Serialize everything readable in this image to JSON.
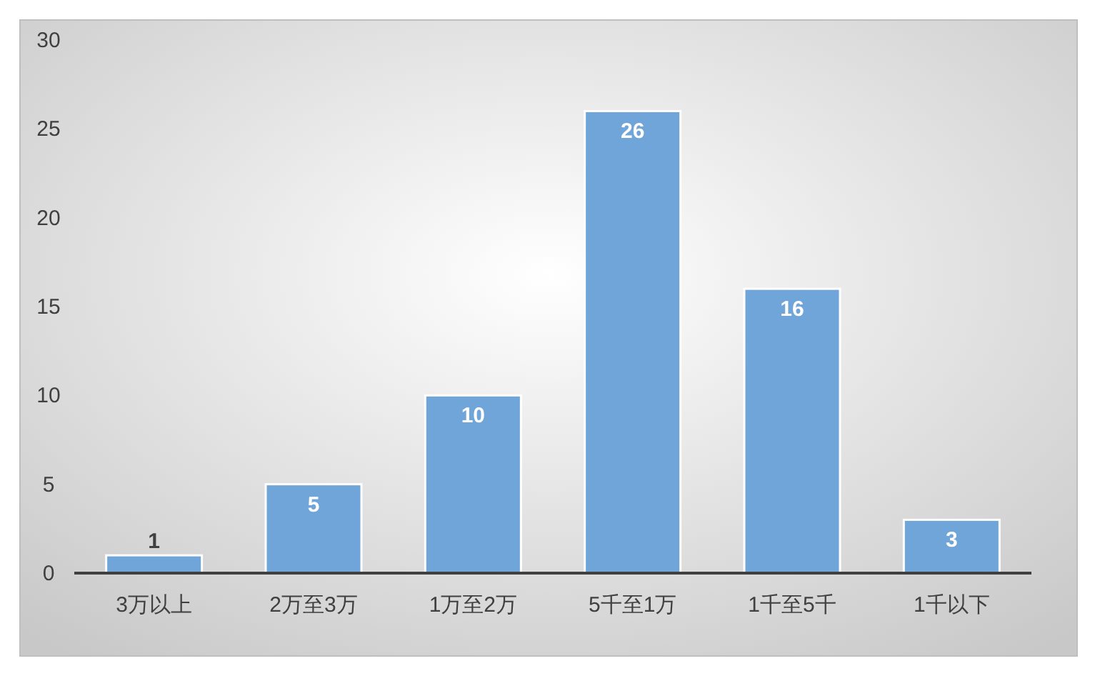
{
  "chart_data": {
    "type": "bar",
    "categories": [
      "3万以上",
      "2万至3万",
      "1万至2万",
      "5千至1万",
      "1千至5千",
      "1千以下"
    ],
    "values": [
      1,
      5,
      10,
      26,
      16,
      3
    ],
    "color": "#6fa5d8",
    "ylim": [
      0,
      30
    ],
    "yticks": [
      0,
      5,
      10,
      15,
      20,
      25,
      30
    ],
    "data_labels": true
  }
}
